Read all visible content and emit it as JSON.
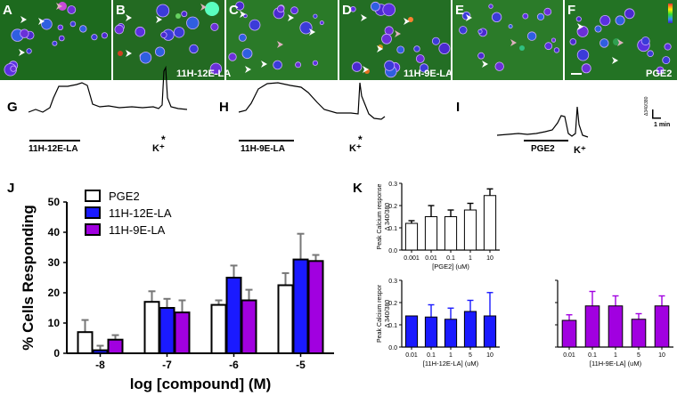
{
  "figure": {
    "panel_labels": [
      "A",
      "B",
      "C",
      "D",
      "E",
      "F",
      "G",
      "H",
      "I",
      "J",
      "K"
    ],
    "image_captions": {
      "B": "11H-12E-LA",
      "D": "11H-9E-LA",
      "F": "PGE2"
    },
    "traces": {
      "G": {
        "bar_label": "11H-12E-LA",
        "k_label": "K⁺",
        "k_mark": "*"
      },
      "H": {
        "bar_label": "11H-9E-LA",
        "k_label": "K⁺",
        "k_mark": "*"
      },
      "I": {
        "bar_label": "PGE2",
        "k_label": "K⁺"
      }
    },
    "scale": {
      "y_label": "Δ340/380",
      "x_label": "1 min"
    }
  },
  "chart_data": [
    {
      "id": "J",
      "type": "bar",
      "ylabel": "% Cells Responding",
      "xlabel": "log [compound] (M)",
      "categories": [
        "-8",
        "-7",
        "-6",
        "-5"
      ],
      "ylim": [
        0,
        50
      ],
      "yticks": [
        "0",
        "10",
        "20",
        "30",
        "40",
        "50"
      ],
      "series": [
        {
          "name": "PGE2",
          "color": "#ffffff",
          "values": [
            7,
            17,
            16,
            22.5
          ],
          "errors": [
            4,
            3.5,
            1.5,
            4
          ]
        },
        {
          "name": "11H-12E-LA",
          "color": "#1a1aff",
          "values": [
            1,
            15,
            25,
            31
          ],
          "errors": [
            1.5,
            3,
            4,
            8.5
          ]
        },
        {
          "name": "11H-9E-LA",
          "color": "#a100e0",
          "values": [
            4.5,
            13.5,
            17.5,
            30.5
          ],
          "errors": [
            1.5,
            4,
            3.5,
            2
          ]
        }
      ]
    },
    {
      "id": "K1",
      "type": "bar",
      "ylabel": "Peak Calcium response",
      "ylabel2": "Δ 340/380",
      "xlabel": "[PGE2] (uM)",
      "categories": [
        "0.001",
        "0.01",
        "0.1",
        "1",
        "10"
      ],
      "ylim": [
        0,
        0.3
      ],
      "yticks": [
        "0.0",
        "0.1",
        "0.2",
        "0.3"
      ],
      "color": "#ffffff",
      "values": [
        0.12,
        0.15,
        0.15,
        0.18,
        0.245
      ],
      "errors": [
        0.012,
        0.05,
        0.03,
        0.03,
        0.03
      ]
    },
    {
      "id": "K2",
      "type": "bar",
      "ylabel": "Peak Calcium respor",
      "ylabel2": "Δ 340/380",
      "xlabel": "[11H-12E-LA] (uM)",
      "categories": [
        "0.01",
        "0.1",
        "1",
        "5",
        "10"
      ],
      "ylim": [
        0,
        0.3
      ],
      "yticks": [
        "0.0",
        "0.1",
        "0.2",
        "0.3"
      ],
      "color": "#1a1aff",
      "values": [
        0.14,
        0.135,
        0.125,
        0.16,
        0.14
      ],
      "errors": [
        0.0,
        0.055,
        0.05,
        0.05,
        0.105
      ]
    },
    {
      "id": "K3",
      "type": "bar",
      "ylabel": "",
      "ylabel2": "",
      "xlabel": "[11H-9E-LA] (uM)",
      "categories": [
        "0.01",
        "0.1",
        "1",
        "5",
        "10"
      ],
      "ylim": [
        0,
        0.3
      ],
      "yticks": [],
      "color": "#a100e0",
      "values": [
        0.12,
        0.185,
        0.185,
        0.125,
        0.185
      ],
      "errors": [
        0.025,
        0.065,
        0.045,
        0.025,
        0.045
      ]
    }
  ]
}
